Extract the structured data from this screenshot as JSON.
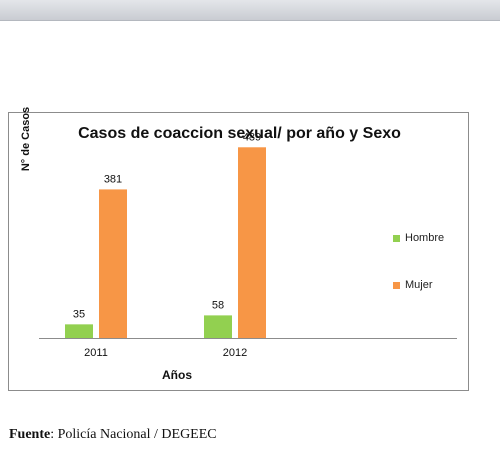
{
  "chart_data": {
    "type": "bar",
    "title": "Casos de coaccion sexual/ por año y Sexo",
    "xlabel": "Años",
    "ylabel": "N° de Casos",
    "categories": [
      "2011",
      "2012"
    ],
    "series": [
      {
        "name": "Hombre",
        "values": [
          35,
          58
        ],
        "color": "#92d050"
      },
      {
        "name": "Mujer",
        "values": [
          381,
          489
        ],
        "color": "#f79646"
      }
    ],
    "ylim": [
      0,
      500
    ],
    "grid": false,
    "legend": "right"
  },
  "source": {
    "label": "Fuente",
    "text": ": Policía Nacional / DEGEEC"
  }
}
